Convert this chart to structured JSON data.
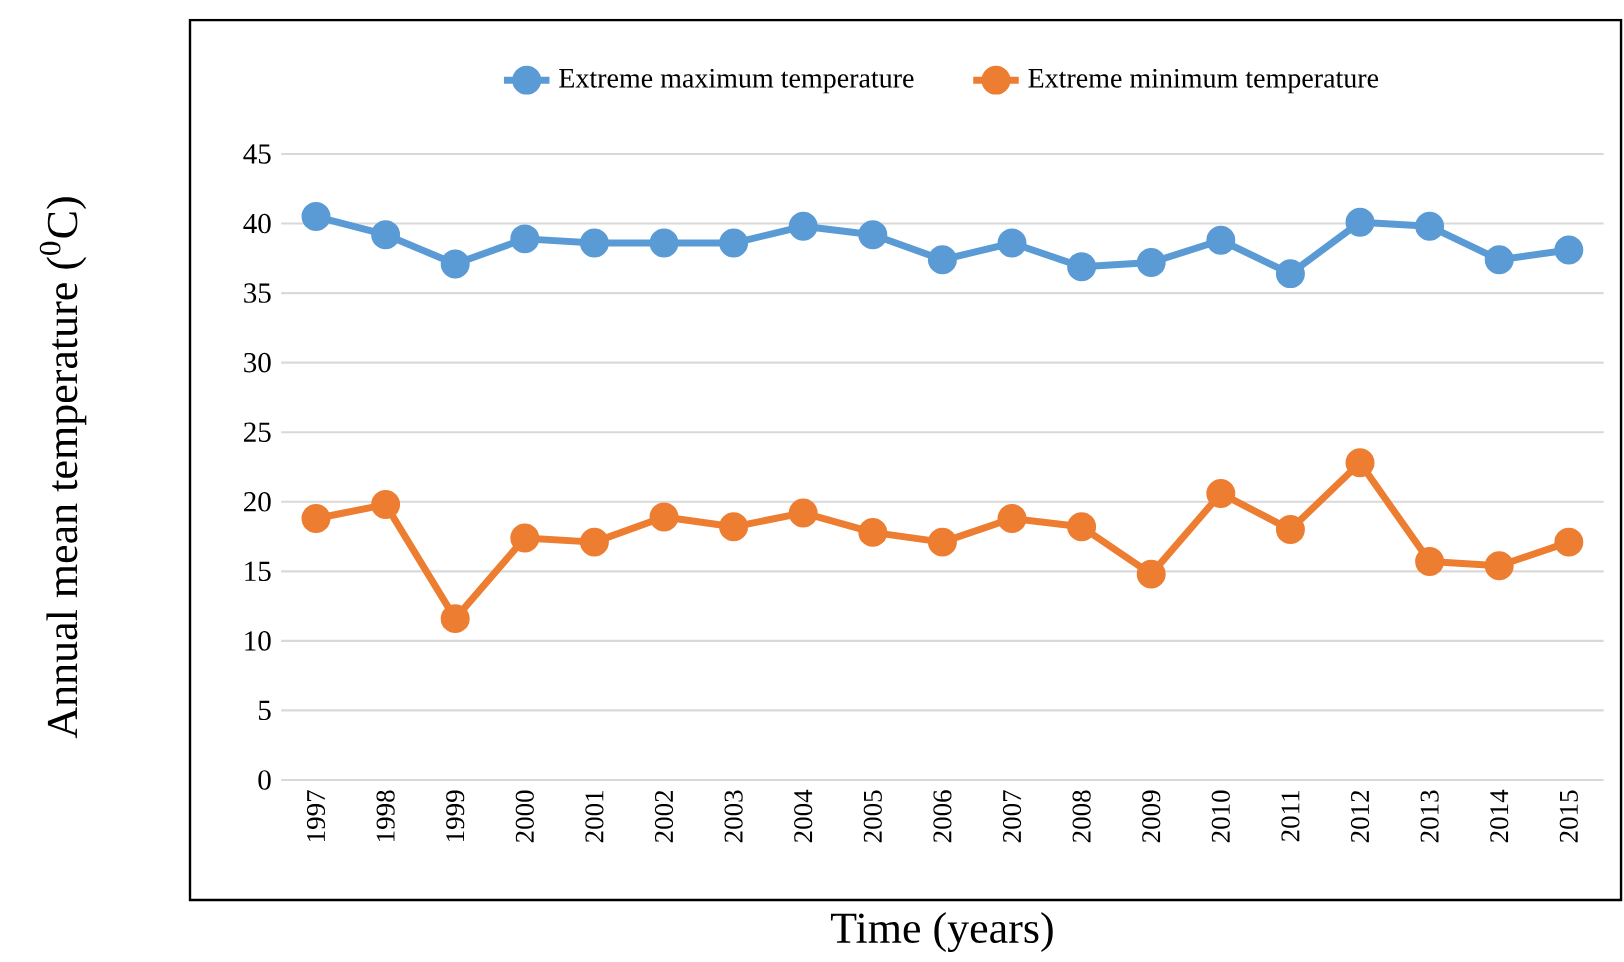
{
  "chart_data": {
    "type": "line",
    "xlabel": "Time (years)",
    "ylabel": "Annual mean temperature ($^{0}$C)",
    "categories": [
      "1997",
      "1998",
      "1999",
      "2000",
      "2001",
      "2002",
      "2003",
      "2004",
      "2005",
      "2006",
      "2007",
      "2008",
      "2009",
      "2010",
      "2011",
      "2012",
      "2013",
      "2014",
      "2015"
    ],
    "series": [
      {
        "name": "Extreme maximum temperature",
        "color": "#5b9bd5",
        "values": [
          40.5,
          39.2,
          37.1,
          38.9,
          38.6,
          38.6,
          38.6,
          39.8,
          39.2,
          37.4,
          38.6,
          36.9,
          37.2,
          38.8,
          36.4,
          40.1,
          39.8,
          37.4,
          38.1
        ]
      },
      {
        "name": "Extreme minimum temperature",
        "color": "#ed7d31",
        "values": [
          18.8,
          19.8,
          11.6,
          17.4,
          17.1,
          18.9,
          18.2,
          19.2,
          17.8,
          17.1,
          18.8,
          18.2,
          14.8,
          20.6,
          18.0,
          22.8,
          15.7,
          15.4,
          17.1
        ]
      }
    ],
    "ylim": [
      0,
      45
    ],
    "yticks": [
      0,
      5,
      10,
      15,
      20,
      25,
      30,
      35,
      40,
      45
    ],
    "grid": "y",
    "legend": "top",
    "marker": "circle",
    "line_style": "solid"
  }
}
